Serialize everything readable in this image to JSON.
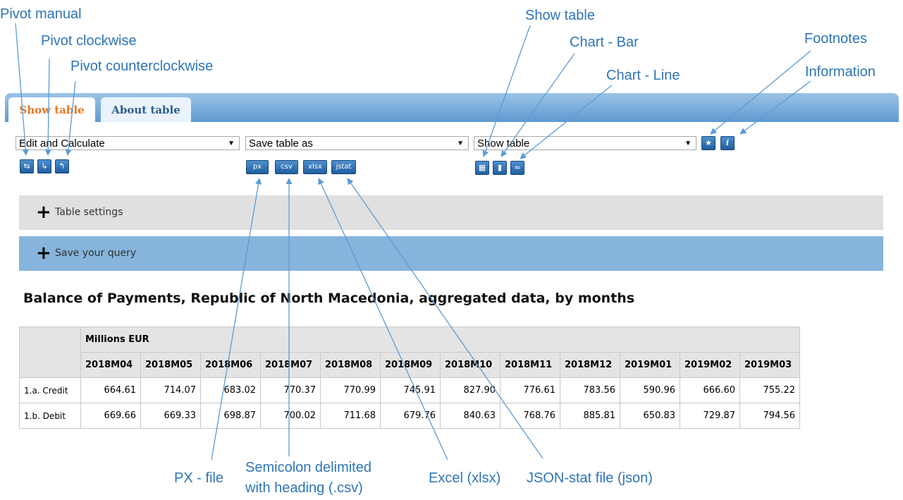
{
  "annotations": {
    "pivot_manual": "Pivot manual",
    "pivot_clockwise": "Pivot clockwise",
    "pivot_counterclockwise": "Pivot counterclockwise",
    "show_table": "Show table",
    "chart_bar": "Chart - Bar",
    "chart_line": "Chart - Line",
    "footnotes": "Footnotes",
    "information": "Information",
    "px_file": "PX - file",
    "csv": [
      "Semicolon delimited",
      "with heading (.csv)"
    ],
    "excel": "Excel (xlsx)",
    "jsonstat": "JSON-stat file (json)"
  },
  "tabs": [
    "Show table",
    "About table"
  ],
  "selects": [
    "Edit and Calculate",
    "Save table as",
    "Show table"
  ],
  "info_button": "i",
  "save_buttons": [
    "px",
    "csv",
    "xlsx",
    "jstat"
  ],
  "panels": [
    "Table settings",
    "Save your query"
  ],
  "table": {
    "title": "Balance of Payments, Republic of North Macedonia, aggregated data, by months",
    "unit": "Millions EUR",
    "columns": [
      "2018M04",
      "2018M05",
      "2018M06",
      "2018M07",
      "2018M08",
      "2018M09",
      "2018M10",
      "2018M11",
      "2018M12",
      "2019M01",
      "2019M02",
      "2019M03"
    ],
    "rows": [
      {
        "label": "1.a. Credit",
        "values": [
          "664.61",
          "714.07",
          "683.02",
          "770.37",
          "770.99",
          "745.91",
          "827.90",
          "776.61",
          "783.56",
          "590.96",
          "666.60",
          "755.22"
        ]
      },
      {
        "label": "1.b. Debit",
        "values": [
          "669.66",
          "669.33",
          "698.87",
          "700.02",
          "711.68",
          "679.76",
          "840.63",
          "768.76",
          "885.81",
          "650.83",
          "729.87",
          "794.56"
        ]
      }
    ]
  }
}
